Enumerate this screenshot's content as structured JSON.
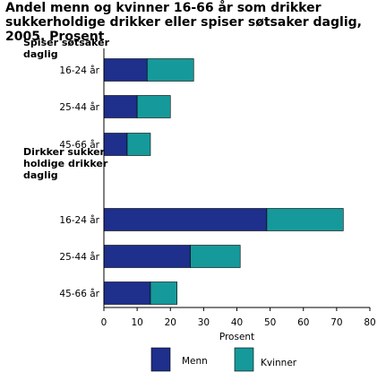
{
  "chart_data": {
    "type": "bar",
    "orientation": "horizontal",
    "stacked": true,
    "title": "Andel menn og kvinner 16-66 år som drikker sukkerholdige drikker eller spiser søtsaker daglig, 2005. Prosent",
    "xlabel": "Prosent",
    "ylabel": "",
    "xlim": [
      0,
      80
    ],
    "xticks": [
      "0",
      "10",
      "20",
      "30",
      "40",
      "50",
      "60",
      "70",
      "80"
    ],
    "grid": false,
    "legend_position": "bottom",
    "groups": [
      {
        "label": "Spiser søtsaker daglig",
        "label_lines": [
          "Spiser søtsaker",
          "daglig"
        ],
        "categories": [
          "16-24 år",
          "25-44 år",
          "45-66 år"
        ]
      },
      {
        "label": "Dirkker sukkerholdige drikker daglig",
        "label_lines": [
          "Dirkker sukker-",
          "holdige drikker",
          "daglig"
        ],
        "categories": [
          "16-24 år",
          "25-44 år",
          "45-66 år"
        ]
      }
    ],
    "series": [
      {
        "name": "Menn",
        "color": "#1e2f8c",
        "values": [
          13,
          10,
          7,
          49,
          26,
          14
        ]
      },
      {
        "name": "Kvinner",
        "color": "#16999a",
        "values": [
          14,
          10,
          7,
          23,
          15,
          8
        ]
      }
    ]
  }
}
